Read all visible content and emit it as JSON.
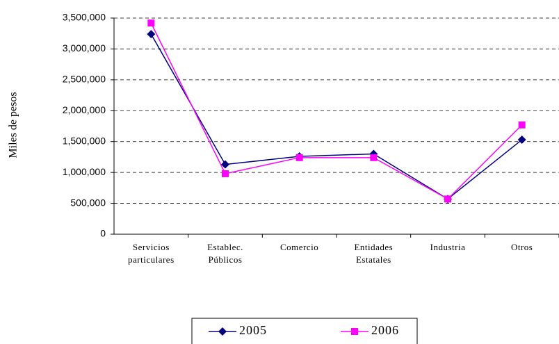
{
  "chart_data": {
    "type": "line",
    "y_label": "Miles de pesos",
    "categories": [
      "Servicios particulares",
      "Establec. Públicos",
      "Comercio",
      "Entidades Estatales",
      "Industria",
      "Otros"
    ],
    "series": [
      {
        "name": "2005",
        "color": "#000080",
        "marker": "diamond",
        "values": [
          3240000,
          1130000,
          1260000,
          1300000,
          570000,
          1530000
        ]
      },
      {
        "name": "2006",
        "color": "#ff00ff",
        "marker": "square",
        "values": [
          3420000,
          980000,
          1240000,
          1240000,
          570000,
          1770000
        ]
      }
    ],
    "ylim": [
      0,
      3500000
    ],
    "yticks": [
      0,
      {
        "value": 500000,
        "label": "500,000"
      },
      {
        "value": 1000000,
        "label": "1,000,000"
      },
      {
        "value": 1500000,
        "label": "1,500,000"
      },
      {
        "value": 2000000,
        "label": "2,000,000"
      },
      {
        "value": 2500000,
        "label": "2,500,000"
      },
      {
        "value": 3000000,
        "label": "3,000,000"
      },
      {
        "value": 3500000,
        "label": "3,500,000"
      }
    ],
    "grid": true
  }
}
